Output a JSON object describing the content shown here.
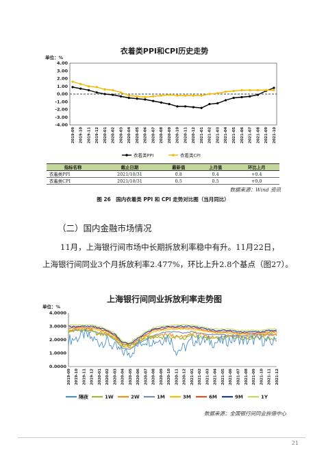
{
  "figure1": {
    "title": "衣着类PPI和CPI历史走势",
    "unit": "单位：%",
    "yticks": [
      "4.00",
      "3.00",
      "2.00",
      "1.00",
      "0.00",
      "-1.00",
      "-2.00",
      "-3.00",
      "-4.00"
    ],
    "legend": [
      "衣着类PPI",
      "衣着类CPI"
    ],
    "colors": {
      "ppi": "#000000",
      "cpi": "#f5b800"
    },
    "table": {
      "headers": [
        "指标名称",
        "截止日期",
        "最新值",
        "上月值",
        "环比上月"
      ],
      "rows": [
        [
          "衣着类PPI",
          "2021/10/31",
          "0.8",
          "0.4",
          "+0.4"
        ],
        [
          "衣着类CPI",
          "2021/10/31",
          "0.5",
          "0.5",
          "+0.0"
        ]
      ]
    },
    "source": "数据来源：Wind 资讯",
    "caption": "图 26　国内衣着类 PPI 和 CPI 走势对比图（当月同比）"
  },
  "section_heading": "（二）国内金融市场情况",
  "paragraph": {
    "line1": "11月，上海银行间市场中长期拆放利率稳中有升。11月22日，",
    "line2": "上海银行间同业3个月拆放利率2.477%，环比上升2.8个基点（图27）。"
  },
  "figure2": {
    "title": "上海银行间同业拆放利率走势图",
    "unit": "单位：%",
    "yticks": [
      "4.0000",
      "3.0000",
      "2.0000",
      "1.0000",
      "0.0000"
    ],
    "legend": [
      "隔夜",
      "1W",
      "2W",
      "1M",
      "3M",
      "6M",
      "9M",
      "1Y"
    ],
    "colors": [
      "#4a90c8",
      "#9ab83a",
      "#f0901e",
      "#7a8cb0",
      "#f5c000",
      "#e0501a",
      "#1a3a8a",
      "#c8d85a"
    ],
    "source": "数据来源：全国银行间同业拆借中心"
  },
  "page_number": "21",
  "chart_data": [
    {
      "type": "line",
      "title": "衣着类PPI和CPI历史走势",
      "ylabel": "单位：%",
      "ylim": [
        -4,
        4
      ],
      "x": [
        "2019-09",
        "2019-10",
        "2019-11",
        "2019-12",
        "2020-01",
        "2020-02",
        "2020-03",
        "2020-04",
        "2020-05",
        "2020-06",
        "2020-07",
        "2020-08",
        "2020-09",
        "2020-10",
        "2020-11",
        "2020-12",
        "2021-01",
        "2021-02",
        "2021-03",
        "2021-04",
        "2021-05",
        "2021-06",
        "2021-07",
        "2021-08",
        "2021-09",
        "2021-10"
      ],
      "series": [
        {
          "name": "衣着类PPI",
          "values": [
            0.9,
            0.7,
            0.5,
            0.2,
            0.0,
            -0.1,
            -0.3,
            -0.5,
            -0.6,
            -0.7,
            -0.9,
            -1.1,
            -1.3,
            -1.6,
            -1.6,
            -1.7,
            -1.8,
            -1.3,
            -1.2,
            -0.8,
            -0.5,
            -0.4,
            -0.3,
            -0.1,
            0.4,
            0.8
          ]
        },
        {
          "name": "衣着类CPI",
          "values": [
            1.6,
            1.3,
            1.0,
            0.9,
            0.6,
            0.5,
            0.2,
            -0.2,
            -0.3,
            -0.4,
            -0.3,
            -0.2,
            -0.1,
            -0.2,
            -0.2,
            -0.2,
            -0.2,
            0.0,
            0.1,
            0.3,
            0.4,
            0.5,
            0.5,
            0.5,
            0.5,
            0.5
          ]
        }
      ],
      "grid": false,
      "legend": "bottom"
    },
    {
      "type": "line",
      "title": "上海银行间同业拆放利率走势图",
      "ylabel": "单位：%",
      "ylim": [
        0,
        4
      ],
      "x": [
        "2019-09",
        "2019-10",
        "2019-11",
        "2019-12",
        "2020-01",
        "2020-02",
        "2020-03",
        "2020-04",
        "2020-05",
        "2020-06",
        "2020-07",
        "2020-08",
        "2020-09",
        "2020-10",
        "2020-11",
        "2020-12",
        "2021-01",
        "2021-02",
        "2021-03",
        "2021-04",
        "2021-05",
        "2021-06",
        "2021-07",
        "2021-08",
        "2021-09",
        "2021-10",
        "2021-11",
        "2021-12"
      ],
      "series": [
        {
          "name": "隔夜",
          "values": [
            2.0,
            2.1,
            2.4,
            2.1,
            1.8,
            1.9,
            1.4,
            1.1,
            1.0,
            1.6,
            2.0,
            1.9,
            2.0,
            2.2,
            1.2,
            1.4,
            1.9,
            2.0,
            1.9,
            1.8,
            1.9,
            2.0,
            2.1,
            1.9,
            2.0,
            2.0,
            1.8,
            1.9
          ]
        },
        {
          "name": "1W",
          "values": [
            2.6,
            2.7,
            2.7,
            2.6,
            2.4,
            2.4,
            2.1,
            1.6,
            1.5,
            1.9,
            2.1,
            2.2,
            2.2,
            2.2,
            2.2,
            2.1,
            2.3,
            2.2,
            2.1,
            2.1,
            2.1,
            2.2,
            2.2,
            2.1,
            2.2,
            2.2,
            2.1,
            2.1
          ]
        },
        {
          "name": "2W",
          "values": [
            2.7,
            2.8,
            2.8,
            2.7,
            2.5,
            2.5,
            2.2,
            1.7,
            1.5,
            1.9,
            2.2,
            2.2,
            2.3,
            2.4,
            2.2,
            2.2,
            2.5,
            2.4,
            2.2,
            2.2,
            2.2,
            2.3,
            2.3,
            2.2,
            2.3,
            2.4,
            2.3,
            2.3
          ]
        },
        {
          "name": "1M",
          "values": [
            2.6,
            2.7,
            2.7,
            2.7,
            2.5,
            2.4,
            2.0,
            1.4,
            1.3,
            1.7,
            2.0,
            2.3,
            2.5,
            2.6,
            2.6,
            2.5,
            2.6,
            2.5,
            2.4,
            2.4,
            2.4,
            2.3,
            2.3,
            2.3,
            2.4,
            2.4,
            2.4,
            2.4
          ]
        },
        {
          "name": "3M",
          "values": [
            2.7,
            2.8,
            2.8,
            2.8,
            2.7,
            2.5,
            2.1,
            1.5,
            1.4,
            1.8,
            2.2,
            2.6,
            2.7,
            2.8,
            2.8,
            2.8,
            2.8,
            2.7,
            2.6,
            2.5,
            2.5,
            2.5,
            2.4,
            2.4,
            2.4,
            2.4,
            2.5,
            2.5
          ]
        },
        {
          "name": "6M",
          "values": [
            2.9,
            2.9,
            2.9,
            2.9,
            2.8,
            2.6,
            2.3,
            1.7,
            1.6,
            2.0,
            2.4,
            2.7,
            2.8,
            2.9,
            2.9,
            2.9,
            2.9,
            2.8,
            2.7,
            2.6,
            2.6,
            2.6,
            2.5,
            2.5,
            2.5,
            2.5,
            2.6,
            2.6
          ]
        },
        {
          "name": "9M",
          "values": [
            3.0,
            3.0,
            3.0,
            3.0,
            2.9,
            2.7,
            2.4,
            1.8,
            1.7,
            2.1,
            2.5,
            2.8,
            2.9,
            3.0,
            3.0,
            3.0,
            3.0,
            2.9,
            2.8,
            2.7,
            2.7,
            2.7,
            2.6,
            2.6,
            2.6,
            2.6,
            2.7,
            2.7
          ]
        },
        {
          "name": "1Y",
          "values": [
            3.1,
            3.1,
            3.1,
            3.1,
            3.0,
            2.8,
            2.5,
            1.9,
            1.8,
            2.2,
            2.6,
            2.9,
            3.0,
            3.1,
            3.1,
            3.1,
            3.1,
            3.0,
            2.9,
            2.8,
            2.8,
            2.8,
            2.7,
            2.7,
            2.7,
            2.7,
            2.8,
            2.8
          ]
        }
      ],
      "grid": false,
      "legend": "bottom"
    }
  ]
}
